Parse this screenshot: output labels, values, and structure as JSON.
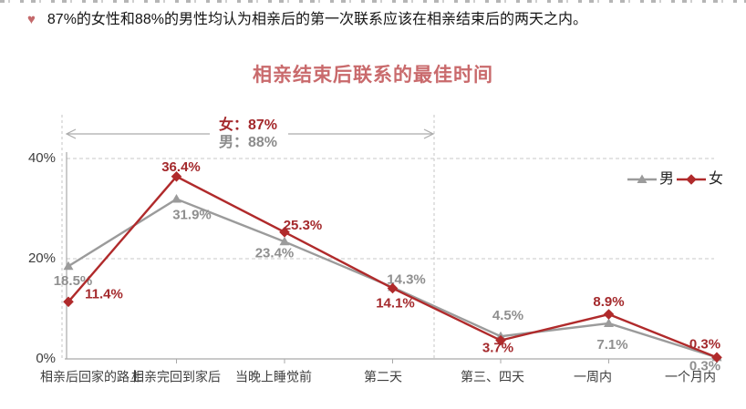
{
  "page": {
    "bullet_icon": "♥",
    "bullet_text": "87%的女性和88%的男性均认为相亲后的第一次联系应该在相亲结束后的两天之内。",
    "title": "相亲结束后联系的最佳时间"
  },
  "annotation": {
    "female_label": "女：87%",
    "male_label": "男：88%"
  },
  "chart_data": {
    "type": "line",
    "title": "相亲结束后联系的最佳时间",
    "categories": [
      "相亲后回家的路上",
      "相亲完回到家后",
      "当晚上睡觉前",
      "第二天",
      "第三、四天",
      "一周内",
      "一个月内"
    ],
    "series": [
      {
        "name": "男",
        "marker": "triangle",
        "color": "#9b9b9b",
        "label_color": "#8f8f8f",
        "values": [
          18.5,
          31.9,
          23.4,
          14.3,
          4.5,
          7.1,
          0.3
        ],
        "labels": [
          "18.5%",
          "31.9%",
          "23.4%",
          "14.3%",
          "4.5%",
          "7.1%",
          "0.3%"
        ]
      },
      {
        "name": "女",
        "marker": "diamond",
        "color": "#b02a2b",
        "label_color": "#a4292c",
        "values": [
          11.4,
          36.4,
          25.3,
          14.1,
          3.7,
          8.9,
          0.3
        ],
        "labels": [
          "11.4%",
          "36.4%",
          "25.3%",
          "14.1%",
          "3.7%",
          "8.9%",
          "0.3%"
        ]
      }
    ],
    "y_ticks": [
      "0%",
      "20%",
      "40%"
    ],
    "ylim": [
      0,
      40
    ],
    "grid": "dashed horizontal gridlines at 20% and 40%",
    "legend_position": "upper right inside plot",
    "bracket_annotation": {
      "female": "女：87%",
      "male": "男：88%",
      "span": "categories 1-4 (within two days after the date)"
    }
  },
  "colors": {
    "accent_red": "#b02a2b",
    "title_red": "#c96a6c",
    "series_gray": "#9b9b9b",
    "axis_gray": "#a9a9a9",
    "grid_gray": "#c9c9c9",
    "text_dark": "#3d3d3d"
  }
}
